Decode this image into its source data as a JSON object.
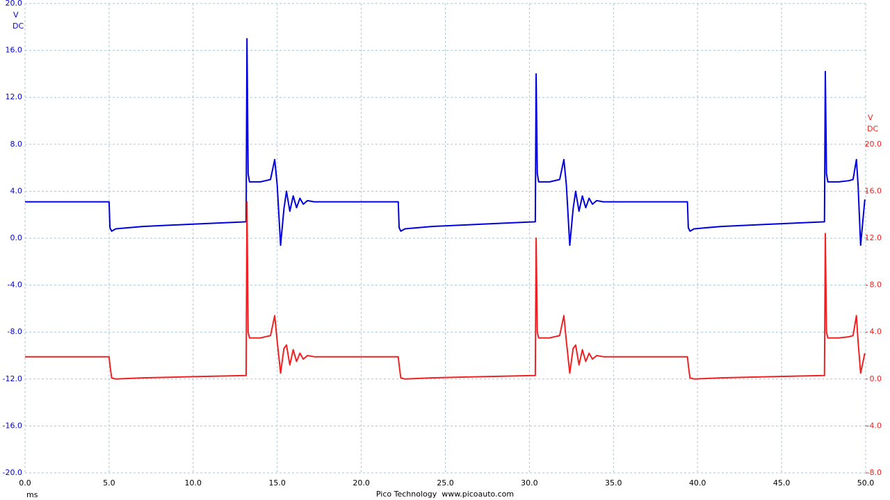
{
  "chart_data": {
    "type": "line",
    "y_unit": "V",
    "y_coupling": "DC",
    "y2_unit": "V",
    "y2_coupling": "DC",
    "x_unit": "ms",
    "footer": "Pico Technology  www.picoauto.com",
    "grid": true,
    "xlim": [
      0,
      50
    ],
    "xticks": [
      {
        "value": 0,
        "label": "0.0"
      },
      {
        "value": 5,
        "label": "5.0"
      },
      {
        "value": 10,
        "label": "10.0"
      },
      {
        "value": 15,
        "label": "15.0"
      },
      {
        "value": 20,
        "label": "20.0"
      },
      {
        "value": 25,
        "label": "25.0"
      },
      {
        "value": 30,
        "label": "30.0"
      },
      {
        "value": 35,
        "label": "35.0"
      },
      {
        "value": 40,
        "label": "40.0"
      },
      {
        "value": 45,
        "label": "45.0"
      },
      {
        "value": 50,
        "label": "50.0"
      }
    ],
    "ylim": [
      -20,
      20
    ],
    "yticks": [
      {
        "value": -20,
        "label": "-20.0"
      },
      {
        "value": -16,
        "label": "-16.0"
      },
      {
        "value": -12,
        "label": "-12.0"
      },
      {
        "value": -8,
        "label": "-8.0"
      },
      {
        "value": -4,
        "label": "-4.0"
      },
      {
        "value": 0,
        "label": "0.0"
      },
      {
        "value": 4,
        "label": "4.0"
      },
      {
        "value": 8,
        "label": "8.0"
      },
      {
        "value": 12,
        "label": "12.0"
      },
      {
        "value": 16,
        "label": "16.0"
      },
      {
        "value": 20,
        "label": "20.0"
      }
    ],
    "y2lim": [
      -8,
      32
    ],
    "y2ticks": [
      {
        "value": -8,
        "label": "-8.0"
      },
      {
        "value": -4,
        "label": "-4.0"
      },
      {
        "value": 0,
        "label": "0.0"
      },
      {
        "value": 4,
        "label": "4.0"
      },
      {
        "value": 8,
        "label": "8.0"
      },
      {
        "value": 12,
        "label": "12.0"
      },
      {
        "value": 16,
        "label": "16.0"
      },
      {
        "value": 20,
        "label": "20.0"
      }
    ],
    "x": [
      0.0,
      5.0,
      5.05,
      5.15,
      5.4,
      7.0,
      10.0,
      13.15,
      13.2,
      13.27,
      13.35,
      14.0,
      14.6,
      14.85,
      15.0,
      15.2,
      15.4,
      15.55,
      15.75,
      15.95,
      16.15,
      16.35,
      16.55,
      16.8,
      17.2,
      22.2,
      22.25,
      22.35,
      22.6,
      24.2,
      27.2,
      30.35,
      30.4,
      30.47,
      30.55,
      31.2,
      31.8,
      32.05,
      32.2,
      32.4,
      32.6,
      32.75,
      32.95,
      33.15,
      33.35,
      33.55,
      33.75,
      34.0,
      34.4,
      39.4,
      39.45,
      39.55,
      39.8,
      41.4,
      44.4,
      47.55,
      47.6,
      47.67,
      47.75,
      48.4,
      49.0,
      49.25,
      49.45,
      49.55,
      49.7,
      49.95
    ],
    "series": [
      {
        "color": "#0000dd",
        "axis": "y",
        "values": [
          3.1,
          3.1,
          0.9,
          0.6,
          0.8,
          1.0,
          1.2,
          1.4,
          17.0,
          5.5,
          4.8,
          4.8,
          5.0,
          6.7,
          4.5,
          -0.6,
          2.5,
          4.0,
          2.3,
          3.6,
          2.6,
          3.4,
          2.9,
          3.2,
          3.1,
          3.1,
          0.9,
          0.6,
          0.8,
          1.0,
          1.2,
          1.4,
          14.0,
          5.5,
          4.8,
          4.8,
          5.0,
          6.7,
          4.5,
          -0.6,
          2.5,
          4.0,
          2.3,
          3.6,
          2.6,
          3.4,
          2.9,
          3.2,
          3.1,
          3.1,
          0.9,
          0.6,
          0.8,
          1.0,
          1.2,
          1.4,
          14.2,
          5.5,
          4.8,
          4.8,
          4.9,
          5.0,
          6.7,
          4.5,
          -0.6,
          3.3
        ]
      },
      {
        "color": "#ee2222",
        "axis": "y2",
        "values": [
          1.9,
          1.9,
          1.2,
          0.1,
          0.0,
          0.1,
          0.2,
          0.3,
          15.1,
          4.0,
          3.5,
          3.5,
          3.7,
          5.4,
          3.2,
          0.5,
          2.6,
          2.9,
          1.2,
          2.5,
          1.5,
          2.2,
          1.7,
          2.0,
          1.9,
          1.9,
          1.2,
          0.1,
          0.0,
          0.1,
          0.2,
          0.3,
          12.0,
          4.0,
          3.5,
          3.5,
          3.7,
          5.4,
          3.2,
          0.5,
          2.6,
          2.9,
          1.2,
          2.5,
          1.5,
          2.2,
          1.7,
          2.0,
          1.9,
          1.9,
          1.2,
          0.1,
          0.0,
          0.1,
          0.2,
          0.3,
          12.4,
          4.0,
          3.5,
          3.5,
          3.6,
          3.7,
          5.4,
          3.2,
          0.5,
          2.2
        ]
      }
    ]
  }
}
